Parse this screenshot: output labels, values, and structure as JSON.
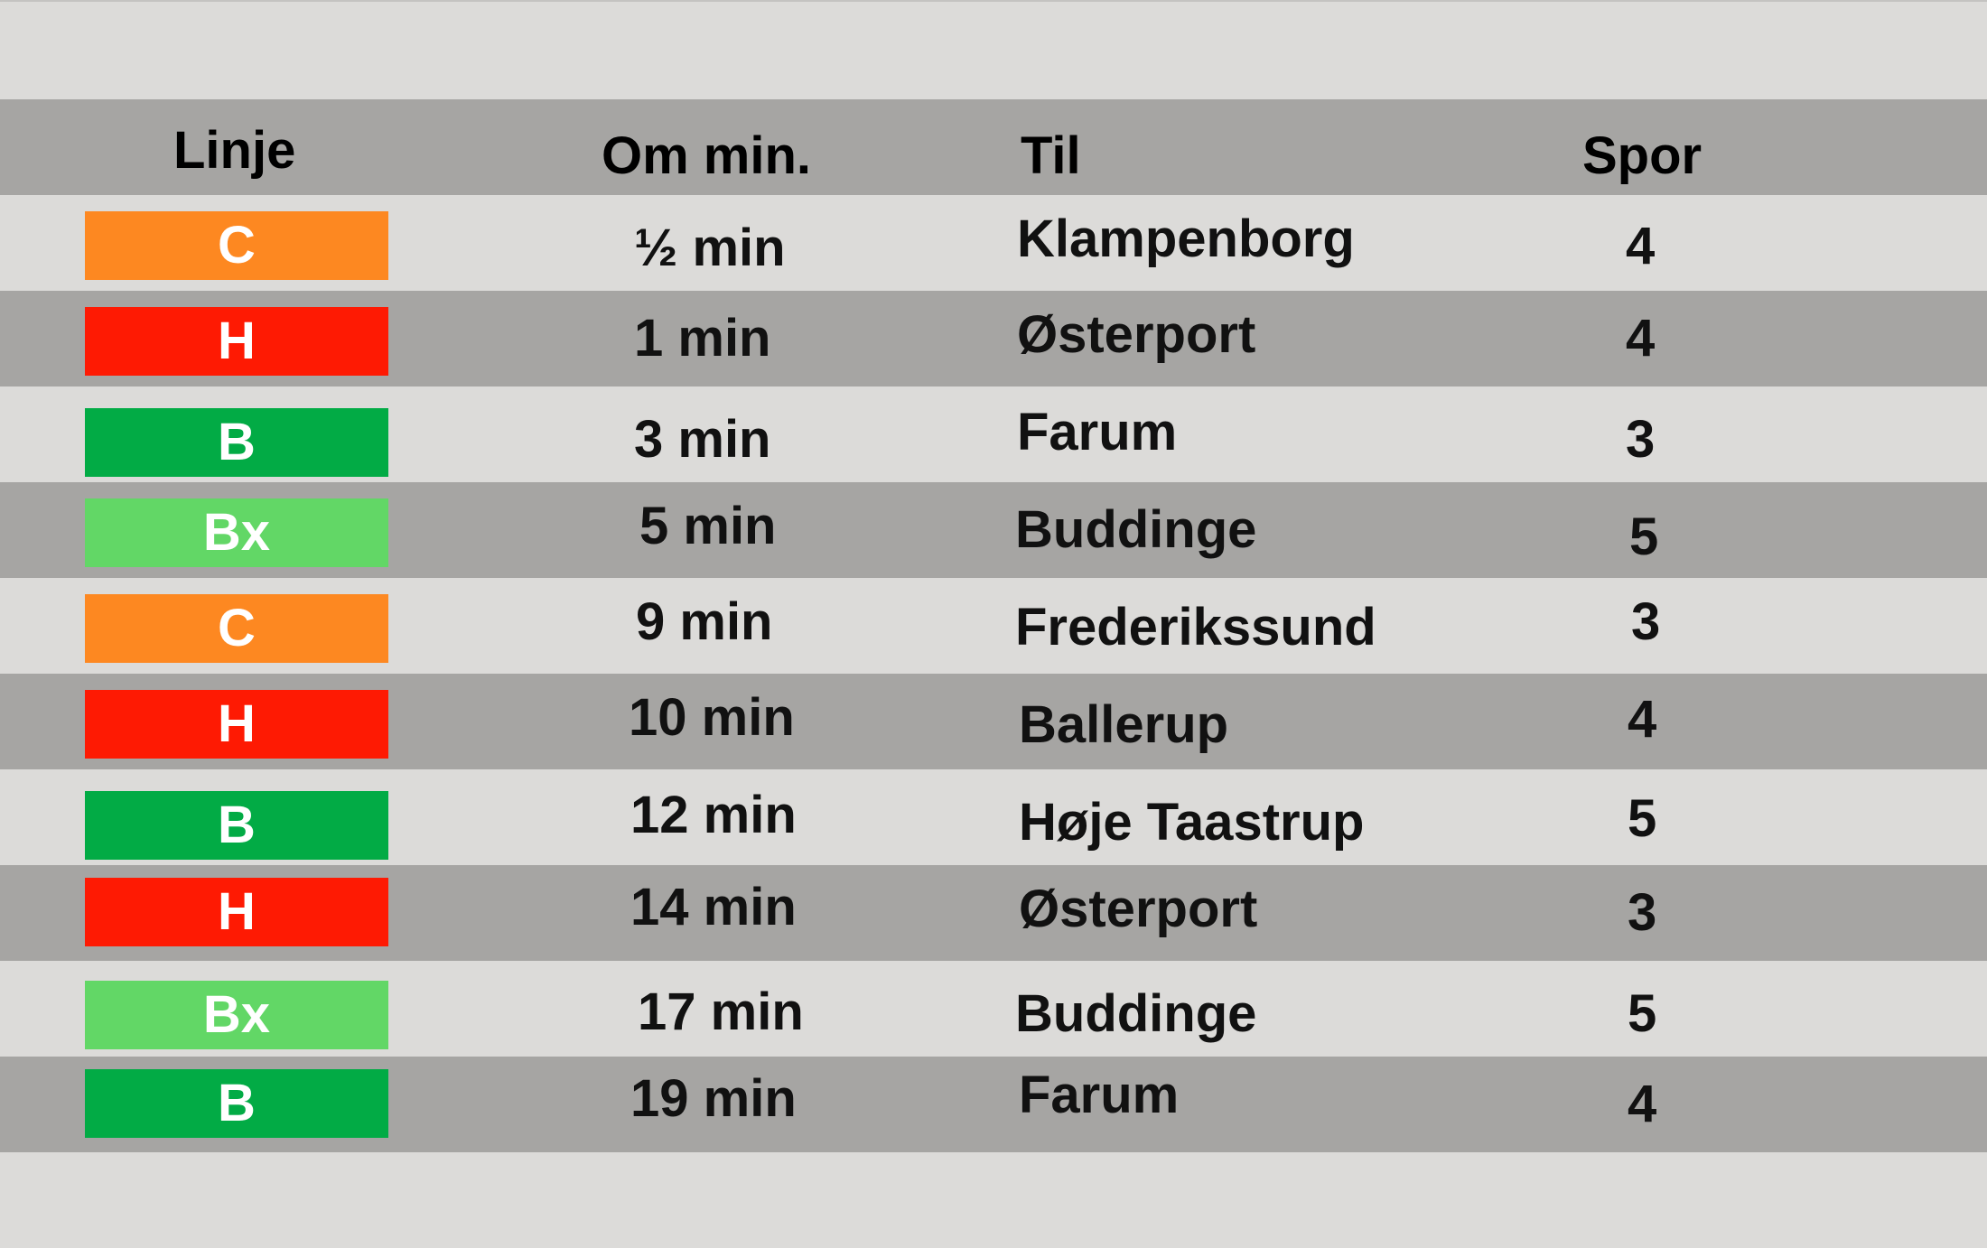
{
  "header": {
    "linje": "Linje",
    "om_min": "Om min.",
    "til": "Til",
    "spor": "Spor"
  },
  "line_colors": {
    "C": "#fd8821",
    "H": "#fe1a03",
    "B": "#02ab45",
    "Bx": "#62d766"
  },
  "departures": [
    {
      "line": "C",
      "minutes": "½ min",
      "destination": "Klampenborg",
      "track": "4"
    },
    {
      "line": "H",
      "minutes": "1 min",
      "destination": "Østerport",
      "track": "4"
    },
    {
      "line": "B",
      "minutes": "3 min",
      "destination": "Farum",
      "track": "3"
    },
    {
      "line": "Bx",
      "minutes": "5 min",
      "destination": "Buddinge",
      "track": "5"
    },
    {
      "line": "C",
      "minutes": "9 min",
      "destination": "Frederikssund",
      "track": "3"
    },
    {
      "line": "H",
      "minutes": "10 min",
      "destination": "Ballerup",
      "track": "4"
    },
    {
      "line": "B",
      "minutes": "12 min",
      "destination": "Høje Taastrup",
      "track": "5"
    },
    {
      "line": "H",
      "minutes": "14 min",
      "destination": "Østerport",
      "track": "3"
    },
    {
      "line": "Bx",
      "minutes": "17 min",
      "destination": "Buddinge",
      "track": "5"
    },
    {
      "line": "B",
      "minutes": "19 min",
      "destination": "Farum",
      "track": "4"
    }
  ]
}
